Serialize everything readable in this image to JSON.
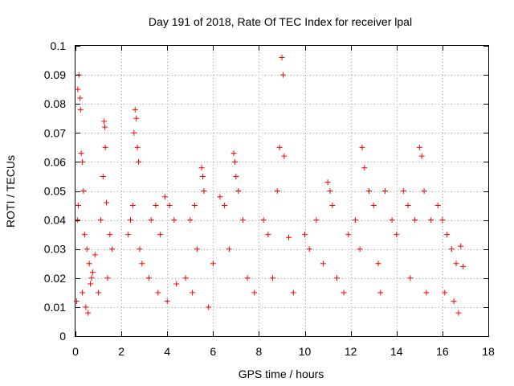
{
  "chart_data": {
    "type": "scatter",
    "title": "Day 191 of 2018, Rate Of TEC Index for receiver lpal",
    "xlabel": "GPS time / hours",
    "ylabel": "ROTI / TECUs",
    "xlim": [
      0,
      18
    ],
    "ylim": [
      0,
      0.1
    ],
    "x_ticks": [
      0,
      2,
      4,
      6,
      8,
      10,
      12,
      14,
      16,
      18
    ],
    "y_ticks": [
      0,
      0.01,
      0.02,
      0.03,
      0.04,
      0.05,
      0.06,
      0.07,
      0.08,
      0.09,
      0.1
    ],
    "x_tick_labels": [
      "0",
      "2",
      "4",
      "6",
      "8",
      "10",
      "12",
      "14",
      "16",
      "18"
    ],
    "y_tick_labels": [
      "0",
      "0.01",
      "0.02",
      "0.03",
      "0.04",
      "0.05",
      "0.06",
      "0.07",
      "0.08",
      "0.09",
      "0.1"
    ],
    "grid": true,
    "marker": "+",
    "color": "#ff0000",
    "x_range_of_data": [
      0,
      17
    ],
    "series": [
      {
        "values": [
          [
            0.05,
            0.012
          ],
          [
            0.1,
            0.085
          ],
          [
            0.15,
            0.09
          ],
          [
            0.2,
            0.082
          ],
          [
            0.22,
            0.078
          ],
          [
            0.25,
            0.063
          ],
          [
            0.3,
            0.06
          ],
          [
            0.35,
            0.05
          ],
          [
            0.12,
            0.045
          ],
          [
            0.08,
            0.04
          ],
          [
            0.4,
            0.035
          ],
          [
            0.5,
            0.03
          ],
          [
            0.6,
            0.025
          ],
          [
            0.7,
            0.02
          ],
          [
            0.3,
            0.015
          ],
          [
            0.45,
            0.01
          ],
          [
            0.55,
            0.008
          ],
          [
            0.65,
            0.018
          ],
          [
            0.75,
            0.022
          ],
          [
            0.85,
            0.028
          ],
          [
            1.25,
            0.074
          ],
          [
            1.28,
            0.072
          ],
          [
            1.3,
            0.065
          ],
          [
            1.2,
            0.055
          ],
          [
            1.35,
            0.046
          ],
          [
            1.1,
            0.04
          ],
          [
            1.5,
            0.035
          ],
          [
            1.6,
            0.03
          ],
          [
            1.4,
            0.02
          ],
          [
            1.0,
            0.015
          ],
          [
            2.6,
            0.078
          ],
          [
            2.65,
            0.075
          ],
          [
            2.55,
            0.07
          ],
          [
            2.7,
            0.065
          ],
          [
            2.75,
            0.06
          ],
          [
            2.5,
            0.045
          ],
          [
            2.4,
            0.04
          ],
          [
            2.3,
            0.035
          ],
          [
            2.8,
            0.03
          ],
          [
            2.9,
            0.025
          ],
          [
            3.3,
            0.04
          ],
          [
            3.5,
            0.045
          ],
          [
            3.7,
            0.035
          ],
          [
            3.9,
            0.048
          ],
          [
            4.1,
            0.045
          ],
          [
            4.3,
            0.04
          ],
          [
            3.2,
            0.02
          ],
          [
            3.6,
            0.015
          ],
          [
            4.0,
            0.012
          ],
          [
            4.4,
            0.018
          ],
          [
            5.0,
            0.04
          ],
          [
            5.2,
            0.045
          ],
          [
            5.5,
            0.058
          ],
          [
            5.55,
            0.055
          ],
          [
            5.6,
            0.05
          ],
          [
            5.3,
            0.03
          ],
          [
            4.8,
            0.02
          ],
          [
            5.1,
            0.015
          ],
          [
            5.8,
            0.01
          ],
          [
            6.0,
            0.025
          ],
          [
            6.3,
            0.048
          ],
          [
            6.5,
            0.045
          ],
          [
            6.9,
            0.063
          ],
          [
            6.95,
            0.06
          ],
          [
            7.0,
            0.055
          ],
          [
            7.1,
            0.05
          ],
          [
            7.3,
            0.04
          ],
          [
            6.7,
            0.03
          ],
          [
            7.5,
            0.02
          ],
          [
            7.8,
            0.015
          ],
          [
            8.2,
            0.04
          ],
          [
            8.4,
            0.035
          ],
          [
            8.8,
            0.05
          ],
          [
            8.9,
            0.065
          ],
          [
            9.0,
            0.096
          ],
          [
            9.05,
            0.09
          ],
          [
            9.1,
            0.062
          ],
          [
            9.3,
            0.034
          ],
          [
            8.6,
            0.02
          ],
          [
            9.5,
            0.015
          ],
          [
            10.0,
            0.035
          ],
          [
            10.2,
            0.03
          ],
          [
            10.5,
            0.04
          ],
          [
            11.0,
            0.053
          ],
          [
            11.1,
            0.05
          ],
          [
            11.2,
            0.045
          ],
          [
            10.8,
            0.025
          ],
          [
            11.4,
            0.02
          ],
          [
            11.7,
            0.015
          ],
          [
            11.9,
            0.035
          ],
          [
            12.2,
            0.04
          ],
          [
            12.5,
            0.065
          ],
          [
            12.6,
            0.058
          ],
          [
            12.8,
            0.05
          ],
          [
            13.0,
            0.045
          ],
          [
            12.4,
            0.03
          ],
          [
            13.2,
            0.025
          ],
          [
            13.5,
            0.05
          ],
          [
            13.8,
            0.04
          ],
          [
            13.3,
            0.015
          ],
          [
            14.0,
            0.035
          ],
          [
            14.3,
            0.05
          ],
          [
            14.5,
            0.045
          ],
          [
            14.8,
            0.04
          ],
          [
            15.0,
            0.065
          ],
          [
            15.1,
            0.062
          ],
          [
            15.2,
            0.05
          ],
          [
            15.5,
            0.04
          ],
          [
            14.6,
            0.02
          ],
          [
            15.3,
            0.015
          ],
          [
            15.8,
            0.045
          ],
          [
            16.0,
            0.04
          ],
          [
            16.2,
            0.035
          ],
          [
            16.4,
            0.03
          ],
          [
            16.6,
            0.025
          ],
          [
            16.8,
            0.031
          ],
          [
            16.9,
            0.024
          ],
          [
            16.5,
            0.012
          ],
          [
            16.7,
            0.008
          ],
          [
            16.1,
            0.015
          ]
        ]
      }
    ]
  }
}
